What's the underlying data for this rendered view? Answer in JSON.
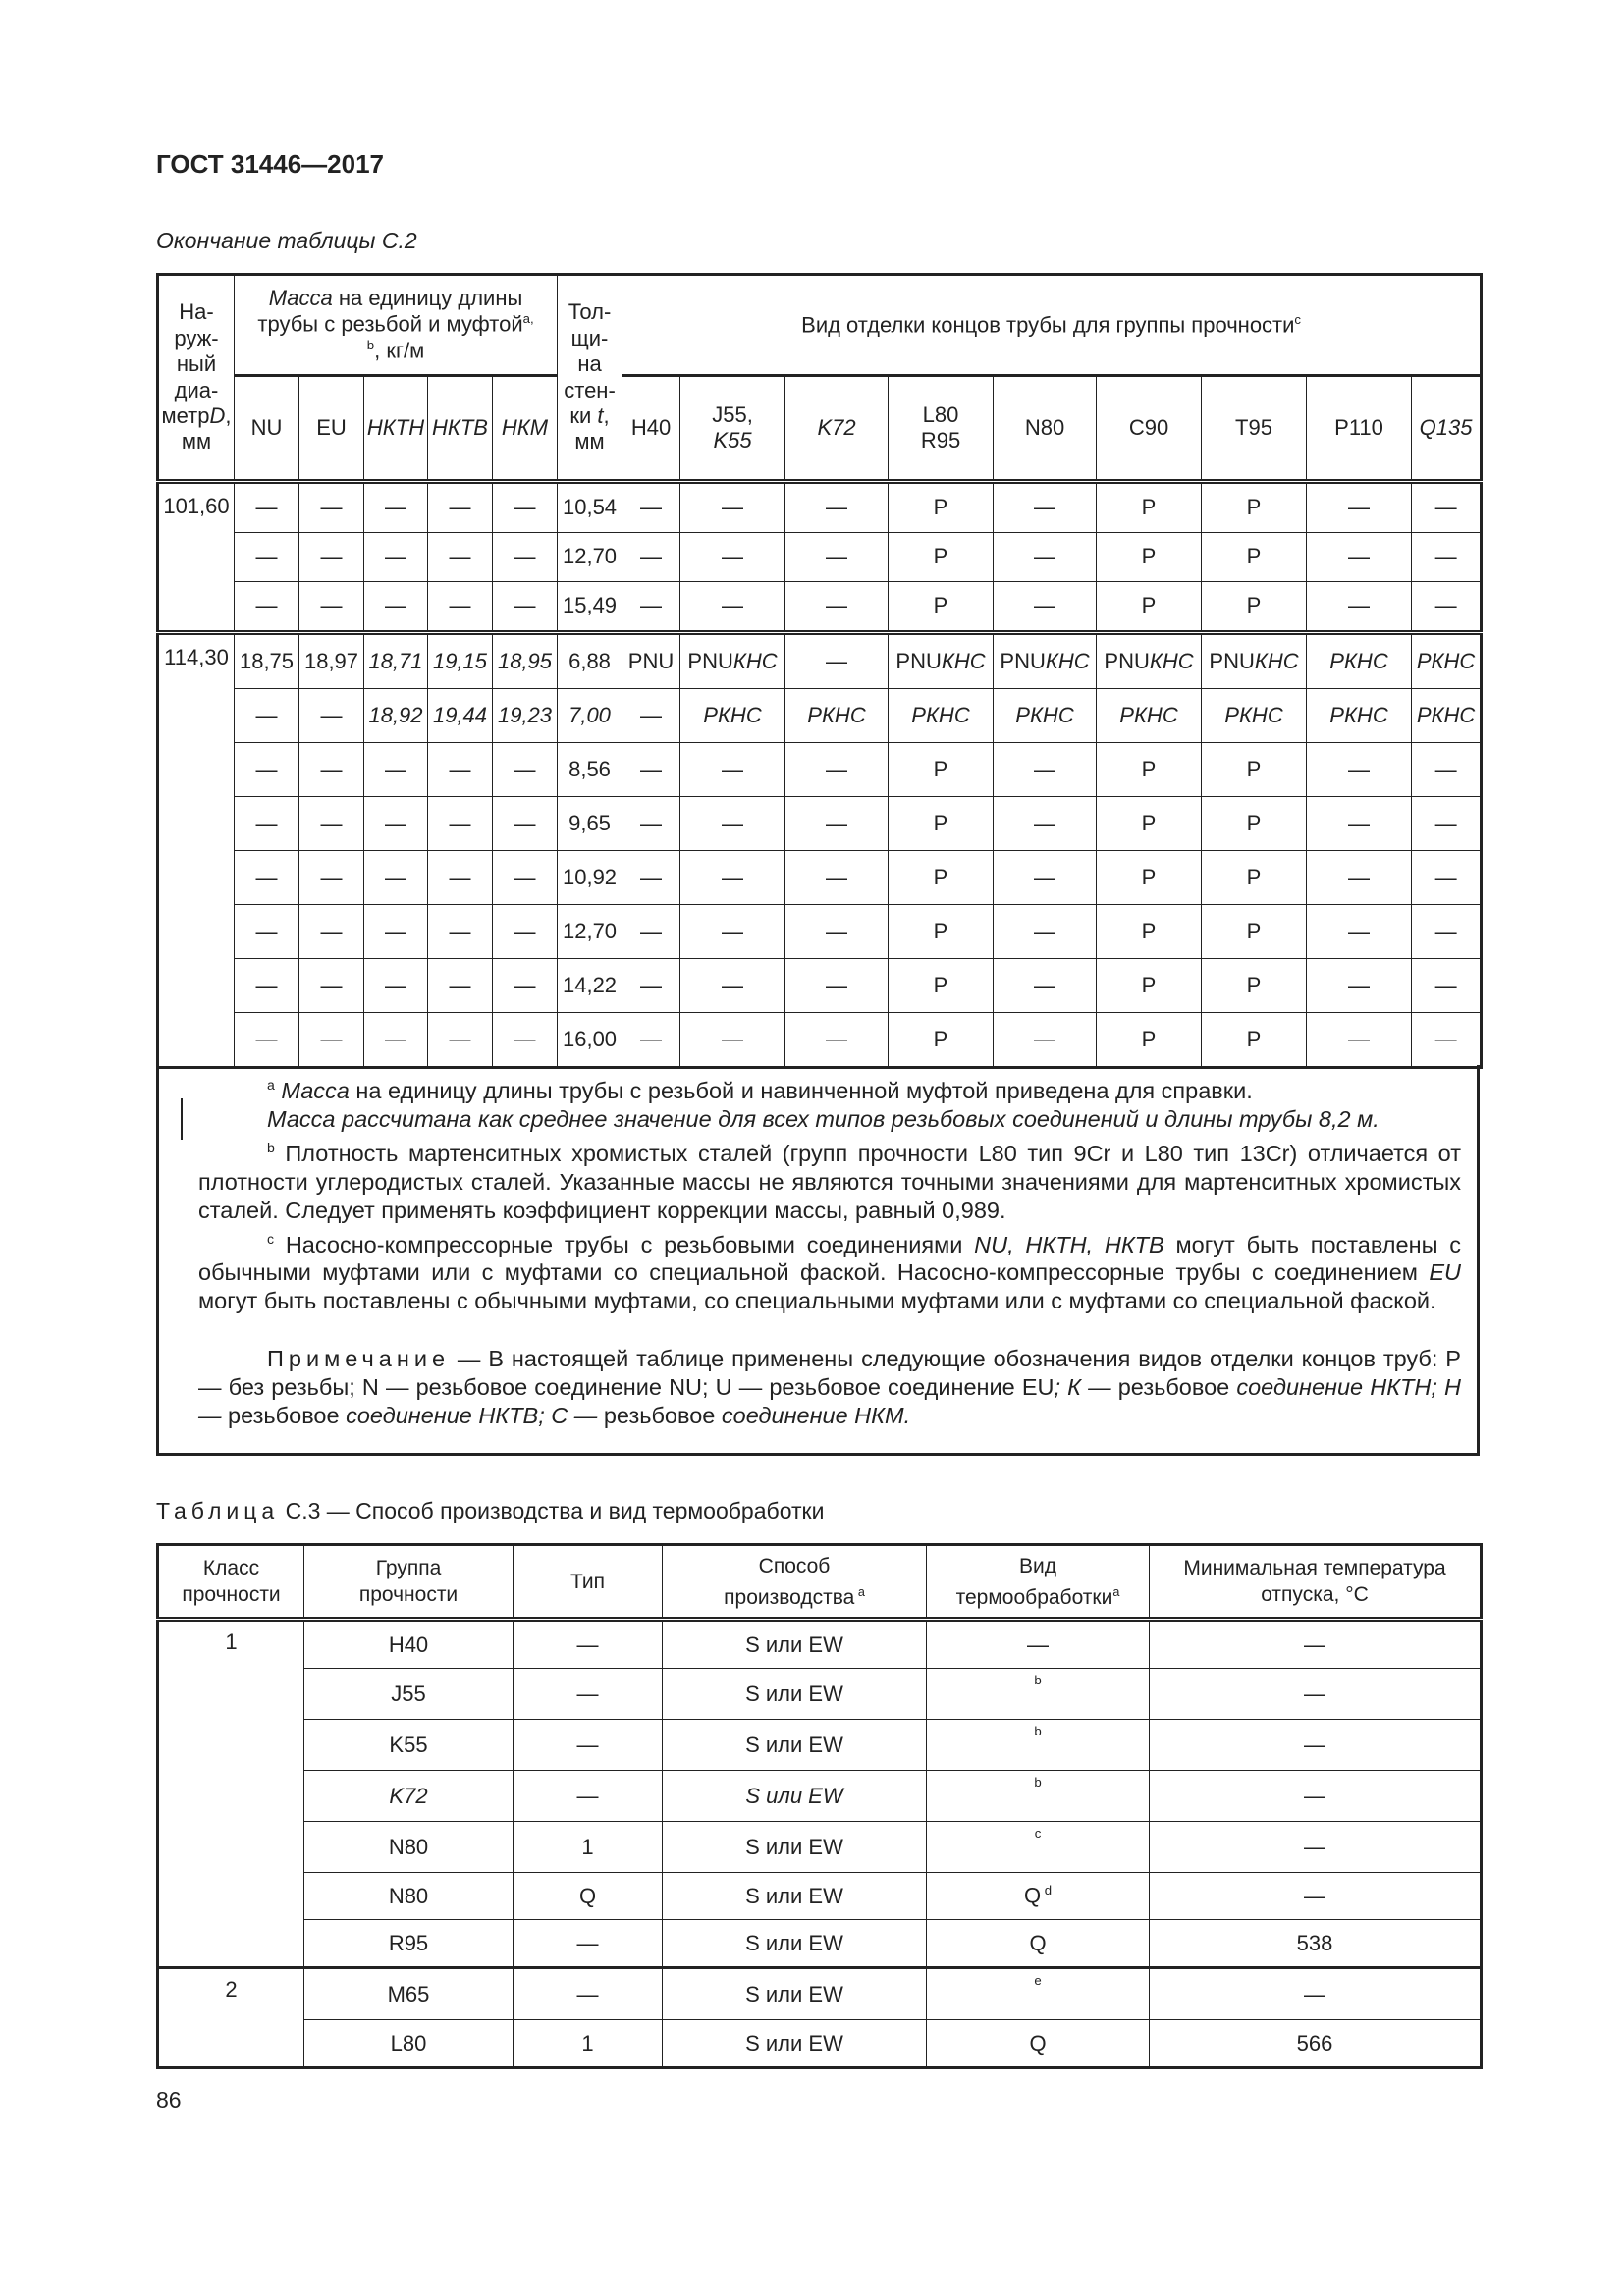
{
  "header": {
    "doc_title": "ГОСТ 31446—2017",
    "caption": "Окончание таблицы С.2"
  },
  "table1": {
    "head": {
      "diameter": [
        "На-",
        "руж-",
        "ный",
        "диа-",
        "метр",
        {
          "i": "D"
        },
        ",",
        "мм"
      ],
      "mass": [
        {
          "i": "Масса"
        },
        " на единицу длины трубы с резьбой и муфтой",
        {
          "sup": "a, b"
        },
        ", кг/м"
      ],
      "thickness": [
        "Тол-щи-на стен-ки ",
        {
          "i": "t"
        },
        ", мм"
      ],
      "finish": [
        "Вид отделки концов трубы для группы прочности",
        {
          "sup": "c"
        }
      ],
      "mass_cols": [
        [
          "NU"
        ],
        [
          "EU"
        ],
        [
          {
            "i": "НКТН"
          }
        ],
        [
          {
            "i": "НКТВ"
          }
        ],
        [
          {
            "i": "НКМ"
          }
        ]
      ],
      "grade_cols": [
        [
          "H40"
        ],
        [
          "J55,",
          {
            "br": 1
          },
          {
            "i": "K55"
          }
        ],
        [
          {
            "i": "K72"
          }
        ],
        [
          "L80",
          {
            "br": 1
          },
          "R95"
        ],
        [
          "N80"
        ],
        [
          "C90"
        ],
        [
          "T95"
        ],
        [
          "P110"
        ],
        [
          {
            "i": "Q135"
          }
        ]
      ]
    },
    "groups": [
      {
        "diameter": "101,60",
        "rows": [
          [
            "—",
            "—",
            "—",
            "—",
            "—",
            "10,54",
            "—",
            "—",
            "—",
            "P",
            "—",
            "P",
            "P",
            "—",
            "—"
          ],
          [
            "—",
            "—",
            "—",
            "—",
            "—",
            "12,70",
            "—",
            "—",
            "—",
            "P",
            "—",
            "P",
            "P",
            "—",
            "—"
          ],
          [
            "—",
            "—",
            "—",
            "—",
            "—",
            "15,49",
            "—",
            "—",
            "—",
            "P",
            "—",
            "P",
            "P",
            "—",
            "—"
          ]
        ]
      },
      {
        "diameter": "114,30",
        "rows": [
          [
            "18,75",
            "18,97",
            [
              {
                "i": "18,71"
              }
            ],
            [
              {
                "i": "19,15"
              }
            ],
            [
              {
                "i": "18,95"
              }
            ],
            "6,88",
            "PNU",
            [
              "PNU",
              {
                "i": "КНС"
              }
            ],
            "—",
            [
              "PNU",
              {
                "i": "КНС"
              }
            ],
            [
              "PNU",
              {
                "i": "КНС"
              }
            ],
            [
              "PNU",
              {
                "i": "КНС"
              }
            ],
            [
              "PNU",
              {
                "i": "КНС"
              }
            ],
            [
              {
                "i": "РКНС"
              }
            ],
            [
              {
                "i": "РКНС"
              }
            ]
          ],
          [
            "—",
            "—",
            [
              {
                "i": "18,92"
              }
            ],
            [
              {
                "i": "19,44"
              }
            ],
            [
              {
                "i": "19,23"
              }
            ],
            [
              {
                "i": "7,00"
              }
            ],
            "—",
            [
              {
                "i": "РКНС"
              }
            ],
            [
              {
                "i": "РКНС"
              }
            ],
            [
              {
                "i": "РКНС"
              }
            ],
            [
              {
                "i": "РКНС"
              }
            ],
            [
              {
                "i": "РКНС"
              }
            ],
            [
              {
                "i": "РКНС"
              }
            ],
            [
              {
                "i": "РКНС"
              }
            ],
            [
              {
                "i": "РКНС"
              }
            ]
          ],
          [
            "—",
            "—",
            "—",
            "—",
            "—",
            "8,56",
            "—",
            "—",
            "—",
            "P",
            "—",
            "P",
            "P",
            "—",
            "—"
          ],
          [
            "—",
            "—",
            "—",
            "—",
            "—",
            "9,65",
            "—",
            "—",
            "—",
            "P",
            "—",
            "P",
            "P",
            "—",
            "—"
          ],
          [
            "—",
            "—",
            "—",
            "—",
            "—",
            "10,92",
            "—",
            "—",
            "—",
            "P",
            "—",
            "P",
            "P",
            "—",
            "—"
          ],
          [
            "—",
            "—",
            "—",
            "—",
            "—",
            "12,70",
            "—",
            "—",
            "—",
            "P",
            "—",
            "P",
            "P",
            "—",
            "—"
          ],
          [
            "—",
            "—",
            "—",
            "—",
            "—",
            "14,22",
            "—",
            "—",
            "—",
            "P",
            "—",
            "P",
            "P",
            "—",
            "—"
          ],
          [
            "—",
            "—",
            "—",
            "—",
            "—",
            "16,00",
            "—",
            "—",
            "—",
            "P",
            "—",
            "P",
            "P",
            "—",
            "—"
          ]
        ]
      }
    ],
    "notes": [
      {
        "cls": "",
        "segs": [
          {
            "sup": "a"
          },
          " ",
          {
            "i": "Масса"
          },
          " на единицу длины трубы с резьбой и навинченной муфтой приведена для справки."
        ]
      },
      {
        "cls": "cont",
        "segs": [
          {
            "i": "Масса рассчитана как среднее значение для всех типов резьбовых соединений и длины трубы 8,2 м."
          }
        ]
      },
      {
        "cls": "",
        "segs": [
          {
            "sup": "b"
          },
          " Плотность мартенситных хромистых сталей (групп прочности L80 тип 9Cr и L80 тип 13Cr) отличается от плотности углеродистых сталей. Указанные массы не являются точными значениями для мартенситных хромистых сталей. Следует применять коэффициент коррекции массы, равный 0,989."
        ]
      },
      {
        "cls": "",
        "segs": [
          {
            "sup": "c"
          },
          " Насосно-компрессорные трубы с резьбовыми соединениями ",
          {
            "i": "NU, НКТН, НКТВ"
          },
          " могут быть поставлены с обычными муфтами или с муфтами со специальной фаской. Насосно-компрессорные трубы с соединением ",
          {
            "i": "EU"
          },
          " могут быть поставлены с обычными муфтами, со специальными муфтами или с муфтами со специальной фаской."
        ]
      },
      {
        "cls": "note",
        "segs": [
          {
            "sp": "Примечание"
          },
          " — В настоящей таблице применены следующие обозначения видов отделки концов труб: P — без резьбы; N — резьбовое соединение NU; U — резьбовое соединение EU",
          {
            "i": "; К — "
          },
          "резьбовое ",
          {
            "i": "соединение НКТН; Н — "
          },
          "резьбовое ",
          {
            "i": "соединение НКТВ; С — "
          },
          "резьбовое ",
          {
            "i": "соединение НКМ."
          }
        ]
      }
    ]
  },
  "table2": {
    "caption": [
      {
        "sp": "Таблица"
      },
      " С.3 — Способ производства и вид термообработки"
    ],
    "head": [
      [
        "Класс",
        {
          "br": 1
        },
        "прочности"
      ],
      [
        "Группа",
        {
          "br": 1
        },
        "прочности"
      ],
      [
        "Тип"
      ],
      [
        "Способ",
        {
          "br": 1
        },
        "производства",
        {
          "sup": " a"
        }
      ],
      [
        "Вид",
        {
          "br": 1
        },
        "термообработки",
        {
          "sup": "a"
        }
      ],
      [
        "Минимальная температура",
        {
          "br": 1
        },
        "отпуска, °С"
      ]
    ],
    "classes": [
      {
        "class": "1",
        "rows": [
          [
            "H40",
            "—",
            "S или EW",
            "—",
            "—"
          ],
          [
            "J55",
            "—",
            "S или EW",
            [
              {
                "sup": "b"
              }
            ],
            "—"
          ],
          [
            "K55",
            "—",
            "S или EW",
            [
              {
                "sup": "b"
              }
            ],
            "—"
          ],
          [
            [
              {
                "i": "K72"
              }
            ],
            "—",
            [
              {
                "i": "S или EW"
              }
            ],
            [
              {
                "sup": "b"
              }
            ],
            "—"
          ],
          [
            "N80",
            "1",
            "S или EW",
            [
              {
                "sup": "c"
              }
            ],
            "—"
          ],
          [
            "N80",
            "Q",
            "S или EW",
            [
              "Q",
              {
                "sup": " d"
              }
            ],
            "—"
          ],
          [
            "R95",
            "—",
            "S или EW",
            "Q",
            "538"
          ]
        ]
      },
      {
        "class": "2",
        "rows": [
          [
            "M65",
            "—",
            "S или EW",
            [
              {
                "sup": "e"
              }
            ],
            "—"
          ],
          [
            "L80",
            "1",
            "S или EW",
            "Q",
            "566"
          ]
        ]
      }
    ]
  },
  "footer": {
    "page_number": "86"
  }
}
